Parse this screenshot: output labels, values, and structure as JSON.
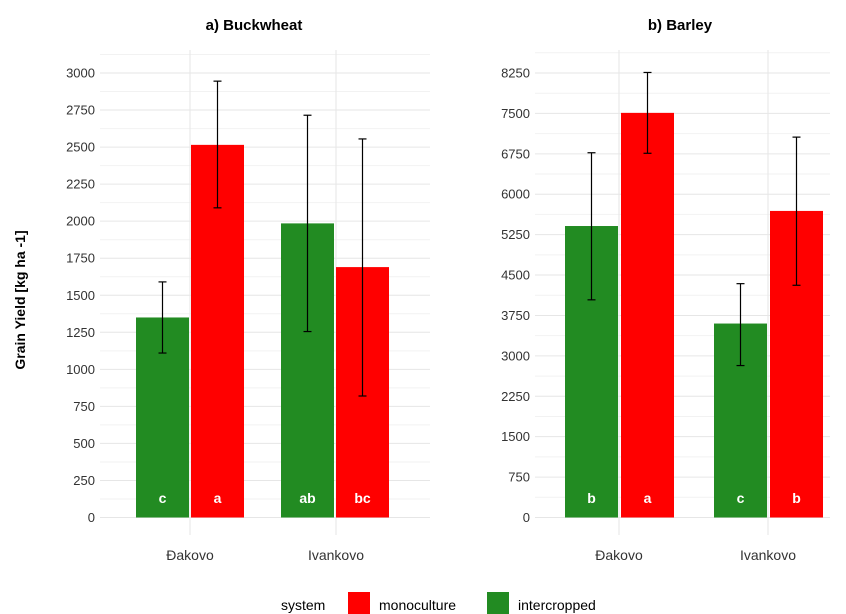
{
  "y_axis_label": "Grain Yield [kg ha -1]",
  "legend": {
    "title": "system",
    "entries": [
      {
        "label": "monoculture",
        "color": "#ff0000"
      },
      {
        "label": "intercropped",
        "color": "#228b22"
      }
    ]
  },
  "chart_data": [
    {
      "type": "bar",
      "title": "a) Buckwheat",
      "categories": [
        "Đakovo",
        "Ivankovo"
      ],
      "yticks": [
        0,
        250,
        500,
        750,
        1000,
        1250,
        1500,
        1750,
        2000,
        2250,
        2500,
        2750,
        3000
      ],
      "ylim": [
        0,
        3250
      ],
      "grid": true,
      "series": [
        {
          "name": "intercropped",
          "color": "#228b22",
          "values": [
            1350,
            1985
          ],
          "error_low": [
            1110,
            1255
          ],
          "error_high": [
            1590,
            2715
          ],
          "letters": [
            "c",
            "ab"
          ]
        },
        {
          "name": "monoculture",
          "color": "#ff0000",
          "values": [
            2515,
            1690
          ],
          "error_low": [
            2090,
            820
          ],
          "error_high": [
            2945,
            2555
          ],
          "letters": [
            "a",
            "bc"
          ]
        }
      ]
    },
    {
      "type": "bar",
      "title": "b) Barley",
      "categories": [
        "Đakovo",
        "Ivankovo"
      ],
      "yticks": [
        0,
        750,
        1500,
        2250,
        3000,
        3750,
        4500,
        5250,
        6000,
        6750,
        7500,
        8250
      ],
      "ylim": [
        0,
        8700
      ],
      "grid": true,
      "series": [
        {
          "name": "intercropped",
          "color": "#228b22",
          "values": [
            5410,
            3600
          ],
          "error_low": [
            4040,
            2820
          ],
          "error_high": [
            6770,
            4340
          ],
          "letters": [
            "b",
            "c"
          ]
        },
        {
          "name": "monoculture",
          "color": "#ff0000",
          "values": [
            7510,
            5690
          ],
          "error_low": [
            6760,
            4310
          ],
          "error_high": [
            8260,
            7060
          ],
          "letters": [
            "a",
            "b"
          ]
        }
      ]
    }
  ]
}
